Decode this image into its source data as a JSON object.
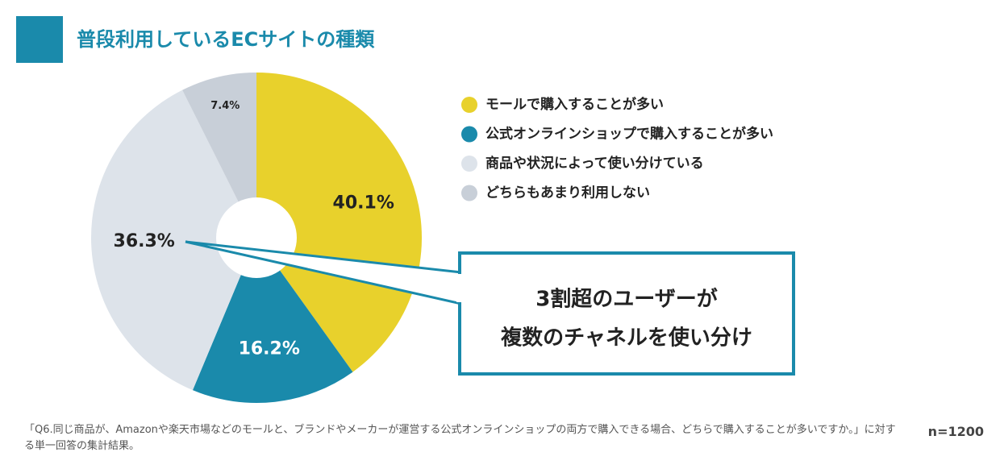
{
  "chart_data": {
    "type": "pie",
    "title": "普段利用しているECサイトの種類",
    "categories": [
      "モールで購入することが多い",
      "公式オンラインショップで購入することが多い",
      "商品や状況によって使い分けている",
      "どちらもあまり利用しない"
    ],
    "values": [
      40.1,
      16.2,
      36.3,
      7.4
    ],
    "value_labels": [
      "40.1%",
      "16.2%",
      "36.3%",
      "7.4%"
    ],
    "colors": [
      "#e8d12c",
      "#1a8aab",
      "#dde3ea",
      "#c8cfd8"
    ],
    "callout": [
      "3割超のユーザーが",
      "複数のチャネルを使い分け"
    ],
    "note": "「Q6.同じ商品が、Amazonや楽天市場などのモールと、ブランドやメーカーが運営する公式オンラインショップの両方で購入できる場合、どちらで購入することが多いですか。」に対する単一回答の集計結果。",
    "sample_size": "n=1200"
  }
}
